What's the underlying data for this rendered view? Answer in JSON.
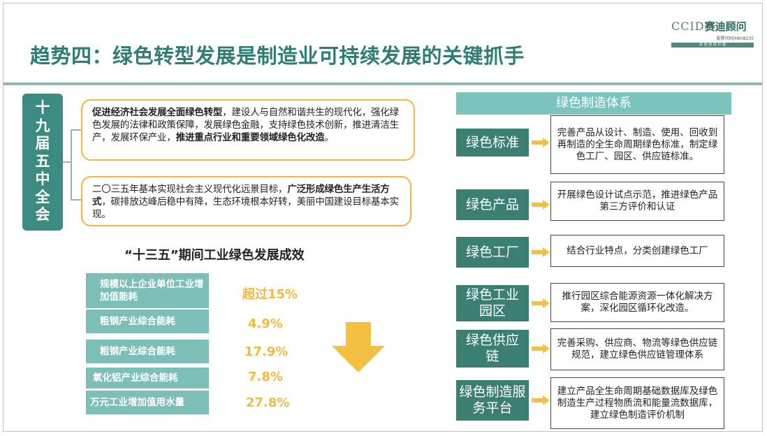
{
  "header": {
    "title": "趋势四：绿色转型发展是制造业可持续发展的关键抓手",
    "logo": {
      "en": "CCID",
      "cn": "赛迪顾问",
      "code": "股票代码|HK08235",
      "slogan": "思 想 创 造 价 值"
    }
  },
  "policy_section": {
    "label": "十九届五中全会",
    "box1": {
      "bold1": "促进经济社会发展全面绿色转型",
      "text1": "，建设人与自然和谐共生的现代化，强化绿色发展的法律和政策保障，发展绿色金融，支持绿色技术创新，推进清洁生产，发展环保产业，",
      "bold2": "推进重点行业和重要领域绿色化改造",
      "text2": "。"
    },
    "box2": {
      "text1": "二〇三五年基本实现社会主义现代化远景目标，",
      "bold1": "广泛形成绿色生产生活方式",
      "text2": "，碳排放达峰后稳中有降，生态环境根本好转，美丽中国建设目标基本实现。"
    }
  },
  "achievements": {
    "title": "“十三五”期间工业绿色发展成效",
    "rows": [
      {
        "label": "规模以上企业单位工业增加值能耗",
        "value": "超过15%"
      },
      {
        "label": "粗钢产业综合能耗",
        "value": "4.9%"
      },
      {
        "label": "粗钢产业综合能耗",
        "value": "17.9%"
      },
      {
        "label": "氧化铝产业综合能耗",
        "value": "7.8%"
      },
      {
        "label": "万元工业增加值用水量",
        "value": "27.8%"
      }
    ]
  },
  "system": {
    "title": "绿色制造体系",
    "items": [
      {
        "name": "绿色标准",
        "desc": "完善产品从设计、制造、使用、回收到再制造的全生命周期绿色标准，制定绿色工厂、园区、供应链标准。"
      },
      {
        "name": "绿色产品",
        "desc": "开展绿色设计试点示范，推进绿色产品第三方评价和认证"
      },
      {
        "name": "绿色工厂",
        "desc": "结合行业特点，分类创建绿色工厂"
      },
      {
        "name": "绿色工业园区",
        "desc": "推行园区综合能源资源一体化解决方案，深化园区循环化改造。"
      },
      {
        "name": "绿色供应链",
        "desc": "完善采购、供应商、物流等绿色供应链规范，建立绿色供应链管理体系"
      },
      {
        "name": "绿色制造服务平台",
        "desc": "建立产品全生命周期基础数据库及绿色制造生产过程物质流和能量流数据库，建立绿色制造评价机制"
      }
    ]
  },
  "colors": {
    "title": "#2e7d73",
    "teal_dark": "#3b7f73",
    "teal_light": "#7bc4bd",
    "accent": "#f4b942"
  }
}
